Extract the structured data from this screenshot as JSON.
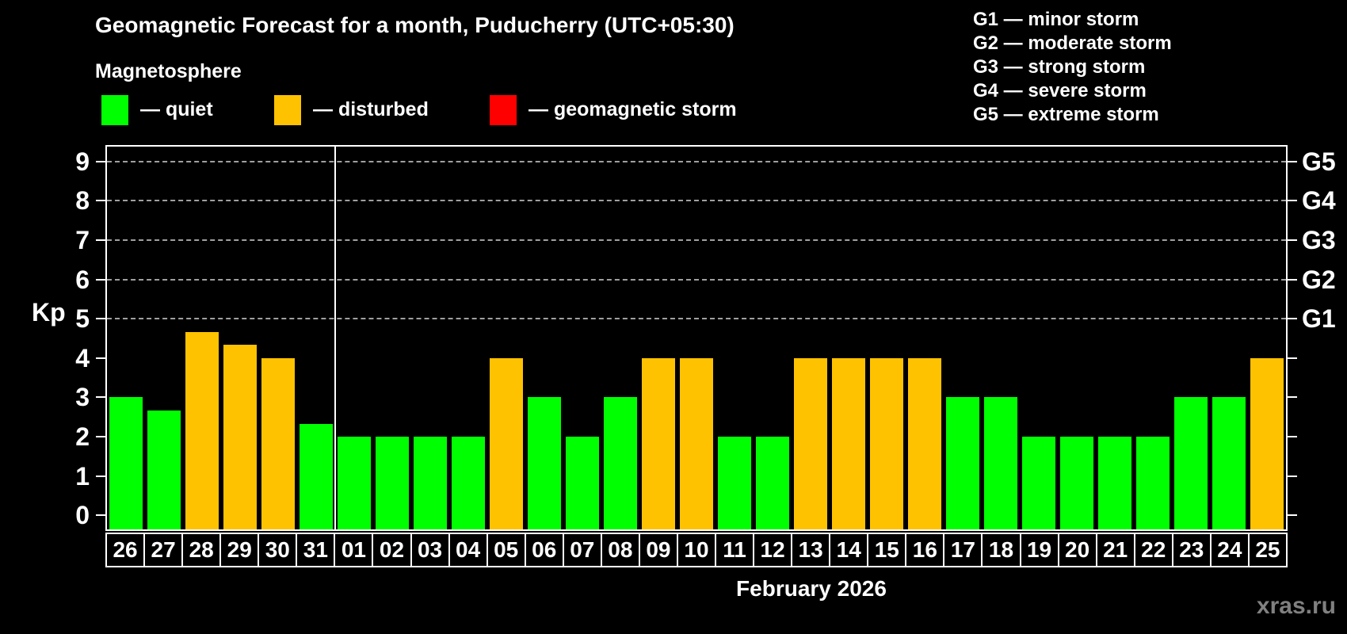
{
  "header": {
    "title": "Geomagnetic Forecast for a month, Puducherry (UTC+05:30)",
    "subtitle": "Magnetosphere"
  },
  "legend": {
    "items": [
      {
        "name": "quiet",
        "label": "— quiet",
        "color": "#00ff00"
      },
      {
        "name": "disturbed",
        "label": "— disturbed",
        "color": "#ffc200"
      },
      {
        "name": "geomagnetic-storm",
        "label": "— geomagnetic storm",
        "color": "#ff0000"
      }
    ]
  },
  "storm_scale_legend": [
    "G1 — minor storm",
    "G2 — moderate storm",
    "G3 — strong storm",
    "G4 — severe storm",
    "G5 — extreme storm"
  ],
  "chart_data": {
    "type": "bar",
    "title": "Geomagnetic Forecast for a month, Puducherry (UTC+05:30)",
    "ylabel": "Kp",
    "xlabel": "February 2026",
    "ylim": [
      -0.36,
      9.38
    ],
    "yticks": [
      0,
      1,
      2,
      3,
      4,
      5,
      6,
      7,
      8,
      9
    ],
    "gridlines_kp": [
      5,
      6,
      7,
      8,
      9
    ],
    "right_axis_labels": [
      {
        "kp": 5,
        "label": "G1"
      },
      {
        "kp": 6,
        "label": "G2"
      },
      {
        "kp": 7,
        "label": "G3"
      },
      {
        "kp": 8,
        "label": "G4"
      },
      {
        "kp": 9,
        "label": "G5"
      }
    ],
    "grid": true,
    "legend_position": "top-left",
    "month_separator_after_index": 5,
    "categories": [
      "26",
      "27",
      "28",
      "29",
      "30",
      "31",
      "01",
      "02",
      "03",
      "04",
      "05",
      "06",
      "07",
      "08",
      "09",
      "10",
      "11",
      "12",
      "13",
      "14",
      "15",
      "16",
      "17",
      "18",
      "19",
      "20",
      "21",
      "22",
      "23",
      "24",
      "25"
    ],
    "values": [
      3,
      2.67,
      4.67,
      4.33,
      4,
      2.33,
      2,
      2,
      2,
      2,
      4,
      3,
      2,
      3,
      4,
      4,
      2,
      2,
      4,
      4,
      4,
      4,
      3,
      3,
      2,
      2,
      2,
      2,
      3,
      3,
      4
    ],
    "statuses": [
      "quiet",
      "quiet",
      "disturbed",
      "disturbed",
      "disturbed",
      "quiet",
      "quiet",
      "quiet",
      "quiet",
      "quiet",
      "disturbed",
      "quiet",
      "quiet",
      "quiet",
      "disturbed",
      "disturbed",
      "quiet",
      "quiet",
      "disturbed",
      "disturbed",
      "disturbed",
      "disturbed",
      "quiet",
      "quiet",
      "quiet",
      "quiet",
      "quiet",
      "quiet",
      "quiet",
      "quiet",
      "disturbed"
    ],
    "colors_by_status": {
      "quiet": "#00ff00",
      "disturbed": "#ffc200",
      "storm": "#ff0000"
    },
    "grid_color": "#a0a0a0",
    "axis_color": "#ffffff"
  },
  "footer": {
    "caption": "February 2026",
    "watermark": "xras.ru"
  }
}
